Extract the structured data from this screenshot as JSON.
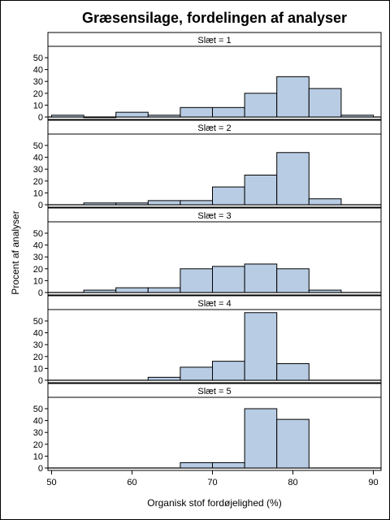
{
  "chart_data": {
    "type": "bar",
    "title": "Græsensilage, fordelingen af analyser",
    "xlabel": "Organisk stof fordøjelighed (%)",
    "ylabel": "Procent af analyser",
    "xlim": [
      49,
      90
    ],
    "ylim": [
      0,
      55
    ],
    "xticks": [
      50,
      60,
      70,
      80,
      90
    ],
    "yticks": [
      0,
      10,
      20,
      30,
      40,
      50
    ],
    "bin_width": 4,
    "bar_color": "#b8cce4",
    "panels": [
      {
        "label": "Slæt = 1",
        "bins": [
          {
            "start": 50,
            "value": 1.5
          },
          {
            "start": 54,
            "value": 0
          },
          {
            "start": 58,
            "value": 4
          },
          {
            "start": 62,
            "value": 1.5
          },
          {
            "start": 66,
            "value": 8
          },
          {
            "start": 70,
            "value": 8
          },
          {
            "start": 74,
            "value": 20
          },
          {
            "start": 78,
            "value": 34
          },
          {
            "start": 82,
            "value": 24
          },
          {
            "start": 86,
            "value": 1.5
          }
        ]
      },
      {
        "label": "Slæt = 2",
        "bins": [
          {
            "start": 54,
            "value": 1.5
          },
          {
            "start": 58,
            "value": 1.5
          },
          {
            "start": 62,
            "value": 3.5
          },
          {
            "start": 66,
            "value": 3.5
          },
          {
            "start": 70,
            "value": 15
          },
          {
            "start": 74,
            "value": 25
          },
          {
            "start": 78,
            "value": 44
          },
          {
            "start": 82,
            "value": 5
          }
        ]
      },
      {
        "label": "Slæt = 3",
        "bins": [
          {
            "start": 54,
            "value": 2
          },
          {
            "start": 58,
            "value": 4
          },
          {
            "start": 62,
            "value": 4
          },
          {
            "start": 66,
            "value": 20
          },
          {
            "start": 70,
            "value": 22
          },
          {
            "start": 74,
            "value": 24
          },
          {
            "start": 78,
            "value": 20
          },
          {
            "start": 82,
            "value": 2
          }
        ]
      },
      {
        "label": "Slæt = 4",
        "bins": [
          {
            "start": 62,
            "value": 2.5
          },
          {
            "start": 66,
            "value": 11
          },
          {
            "start": 70,
            "value": 16
          },
          {
            "start": 74,
            "value": 57
          },
          {
            "start": 78,
            "value": 14
          }
        ]
      },
      {
        "label": "Slæt = 5",
        "bins": [
          {
            "start": 66,
            "value": 4.5
          },
          {
            "start": 70,
            "value": 4.5
          },
          {
            "start": 74,
            "value": 50
          },
          {
            "start": 78,
            "value": 41
          }
        ]
      }
    ]
  }
}
